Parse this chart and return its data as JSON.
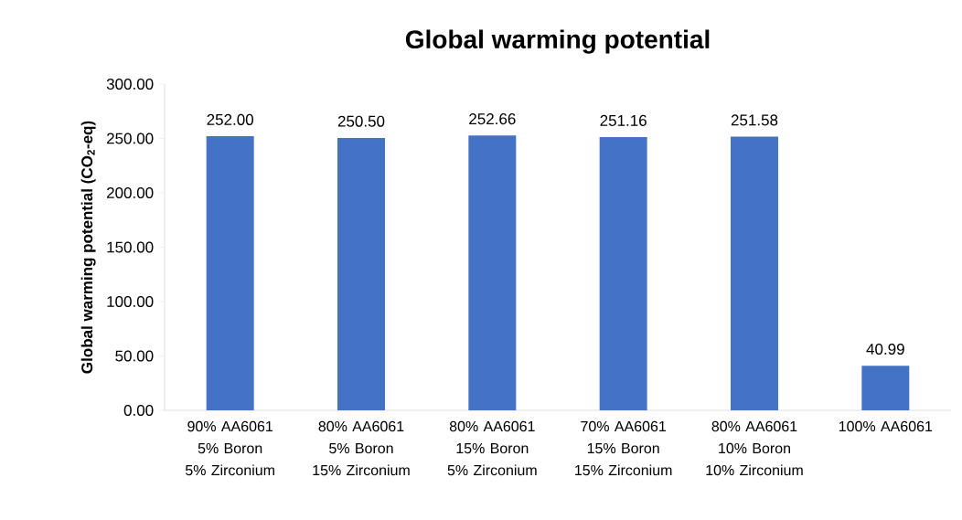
{
  "chart_data": {
    "type": "bar",
    "title": "Global warming potential",
    "ylabel": "Global warming potential (CO$_{2}$-eq)",
    "categories": [
      "90% AA6061 5% Boron 5% Zirconium",
      "80% AA6061 5% Boron 15% Zirconium",
      "80% AA6061 15% Boron 5% Zirconium",
      "70% AA6061 15% Boron 15% Zirconium",
      "80% AA6061 10% Boron 10% Zirconium",
      "100% AA6061"
    ],
    "values": [
      252.0,
      250.5,
      252.66,
      251.16,
      251.58,
      40.99
    ],
    "value_labels": [
      "252.00",
      "250.50",
      "252.66",
      "251.16",
      "251.58",
      "40.99"
    ],
    "color": "#4472c4",
    "ylim": [
      0,
      300
    ],
    "yticks": [
      {
        "value": 0,
        "label": "0.00"
      },
      {
        "value": 50,
        "label": "50.00"
      },
      {
        "value": 100,
        "label": "100.00"
      },
      {
        "value": 150,
        "label": "150.00"
      },
      {
        "value": 200,
        "label": "200.00"
      },
      {
        "value": 250,
        "label": "250.00"
      },
      {
        "value": 300,
        "label": "300.00"
      }
    ],
    "grid": false
  }
}
